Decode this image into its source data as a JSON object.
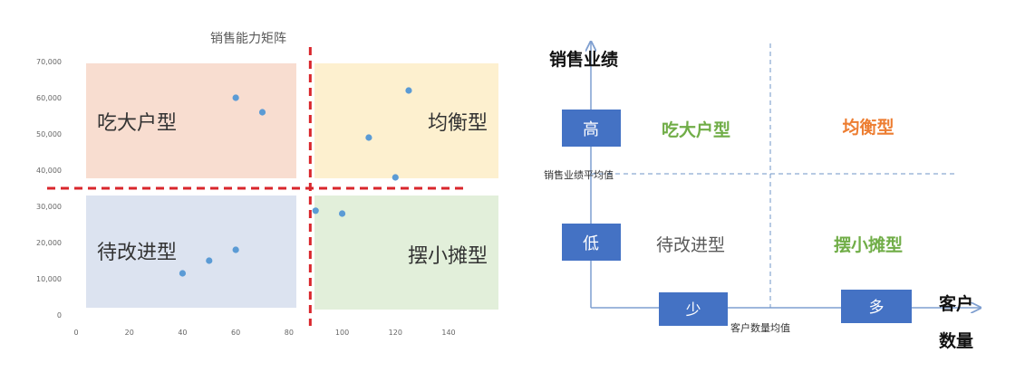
{
  "left_chart": {
    "title": "销售能力矩阵",
    "quadrant_labels": {
      "top_left": "吃大户型",
      "top_right": "均衡型",
      "bottom_left": "待改进型",
      "bottom_right": "摆小摊型"
    }
  },
  "right_diagram": {
    "y_axis_label": "销售业绩",
    "x_axis_label_line1": "客户",
    "x_axis_label_line2": "数量",
    "high_label": "高",
    "low_label": "低",
    "few_label": "少",
    "many_label": "多",
    "h_mean_label": "销售业绩平均值",
    "v_mean_label": "客户数量均值",
    "quadrants": {
      "top_left": "吃大户型",
      "top_right": "均衡型",
      "bottom_left": "待改进型",
      "bottom_right": "摆小摊型"
    },
    "colors": {
      "box_fill": "#4472c4",
      "green_text": "#70ad47",
      "orange_text": "#ed7d31",
      "gray_text": "#595959"
    }
  },
  "chart_data": {
    "type": "scatter",
    "title": "销售能力矩阵",
    "xlim": [
      0,
      140
    ],
    "ylim": [
      0,
      70000
    ],
    "x_ticks": [
      "0",
      "20",
      "40",
      "60",
      "80",
      "100",
      "120",
      "140"
    ],
    "y_ticks": [
      "0",
      "10,000",
      "20,000",
      "30,000",
      "40,000",
      "50,000",
      "60,000",
      "70,000"
    ],
    "x_divider": 88,
    "y_divider": 35000,
    "points": [
      {
        "x": 40,
        "y": 11500
      },
      {
        "x": 50,
        "y": 15000
      },
      {
        "x": 60,
        "y": 18000
      },
      {
        "x": 60,
        "y": 60000
      },
      {
        "x": 70,
        "y": 56000
      },
      {
        "x": 90,
        "y": 28800
      },
      {
        "x": 100,
        "y": 28000
      },
      {
        "x": 110,
        "y": 49000
      },
      {
        "x": 120,
        "y": 38000
      },
      {
        "x": 125,
        "y": 62000
      }
    ],
    "point_color": "#5b9bd5",
    "divider_color": "#d9262c",
    "quadrant_colors": {
      "top_left": "#f8ddd0",
      "top_right": "#fdf0cf",
      "bottom_left": "#dce3f0",
      "bottom_right": "#e2efda"
    },
    "grid": false,
    "legend": "none"
  }
}
